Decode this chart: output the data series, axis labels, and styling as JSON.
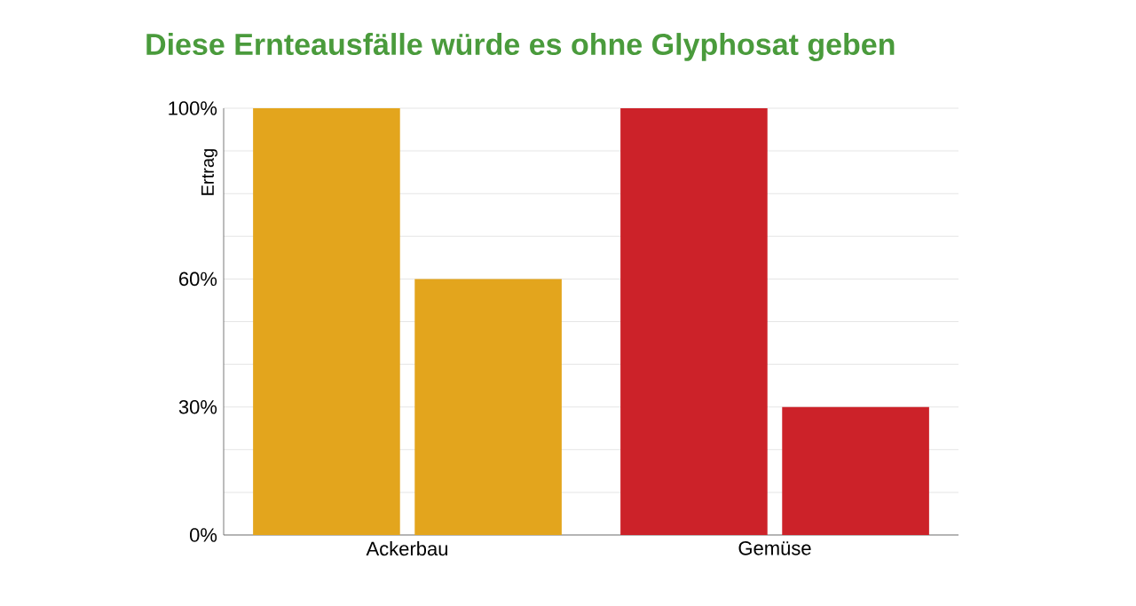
{
  "chart_data": {
    "type": "bar",
    "title": "Diese Ernteausfälle würde es ohne Glyphosat geben",
    "ylabel": "Ertrag",
    "categories": [
      "Ackerbau",
      "Gemüse"
    ],
    "series": [
      {
        "colors": [
          "#e3a51d",
          "#cc2229"
        ],
        "values": [
          100,
          100
        ]
      },
      {
        "colors": [
          "#e3a51d",
          "#cc2229"
        ],
        "values": [
          60,
          30
        ]
      }
    ],
    "ylim": [
      0,
      100
    ],
    "yticks": [
      {
        "value": 0,
        "label": "0%"
      },
      {
        "value": 10,
        "label": null
      },
      {
        "value": 20,
        "label": null
      },
      {
        "value": 30,
        "label": "30%"
      },
      {
        "value": 40,
        "label": null
      },
      {
        "value": 50,
        "label": null
      },
      {
        "value": 60,
        "label": "60%"
      },
      {
        "value": 70,
        "label": null
      },
      {
        "value": 80,
        "label": null
      },
      {
        "value": 90,
        "label": null
      },
      {
        "value": 100,
        "label": "100%"
      }
    ],
    "grid": "y"
  }
}
